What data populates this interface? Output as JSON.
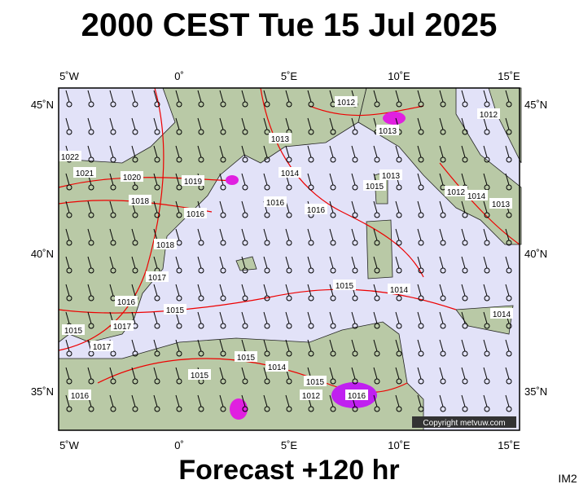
{
  "title": "2000 CEST Tue 15 Jul 2025",
  "footer": "Forecast +120 hr",
  "corner_label": "IM2",
  "copyright": "Copyright metvuw.com",
  "map": {
    "lon_labels": [
      "5˚W",
      "0˚",
      "5˚E",
      "10˚E",
      "15˚E"
    ],
    "lat_labels": [
      "45˚N",
      "40˚N",
      "35˚N"
    ],
    "isobar_labels": [
      1012,
      1013,
      1013,
      1014,
      1013,
      1015,
      1020,
      1019,
      1021,
      1022,
      1018,
      1016,
      1016,
      1016,
      1018,
      1017,
      1016,
      1017,
      1015,
      1017,
      1015,
      1014,
      1015,
      1014,
      1015,
      1015,
      1015,
      1012,
      1016,
      1016,
      1012,
      1014,
      1013,
      1014,
      1012
    ]
  }
}
